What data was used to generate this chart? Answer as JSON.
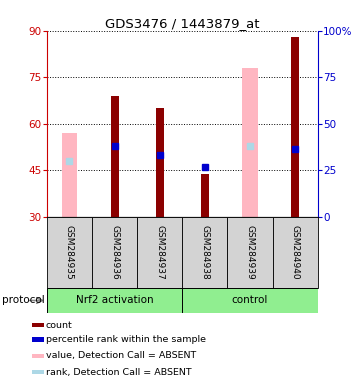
{
  "title": "GDS3476 / 1443879_at",
  "samples": [
    "GSM284935",
    "GSM284936",
    "GSM284937",
    "GSM284938",
    "GSM284939",
    "GSM284940"
  ],
  "ylim_left": [
    30,
    90
  ],
  "ylim_right": [
    0,
    100
  ],
  "yticks_left": [
    30,
    45,
    60,
    75,
    90
  ],
  "yticks_right": [
    0,
    25,
    50,
    75,
    100
  ],
  "left_axis_color": "#cc0000",
  "right_axis_color": "#0000cc",
  "count_color": "#8b0000",
  "percentile_color": "#0000cd",
  "absent_value_color": "#ffb6c1",
  "absent_rank_color": "#add8e6",
  "count_values": [
    null,
    69,
    65,
    44,
    null,
    88
  ],
  "percentile_values": [
    null,
    53,
    50,
    46,
    null,
    52
  ],
  "absent_value_tops": [
    57,
    null,
    null,
    null,
    78,
    null
  ],
  "absent_rank_values": [
    48,
    null,
    null,
    null,
    53,
    null
  ],
  "group1_label": "Nrf2 activation",
  "group2_label": "control",
  "group_color": "#90ee90",
  "protocol_label": "protocol",
  "legend_items": [
    {
      "color": "#8b0000",
      "label": "count"
    },
    {
      "color": "#0000cd",
      "label": "percentile rank within the sample"
    },
    {
      "color": "#ffb6c1",
      "label": "value, Detection Call = ABSENT"
    },
    {
      "color": "#add8e6",
      "label": "rank, Detection Call = ABSENT"
    }
  ]
}
